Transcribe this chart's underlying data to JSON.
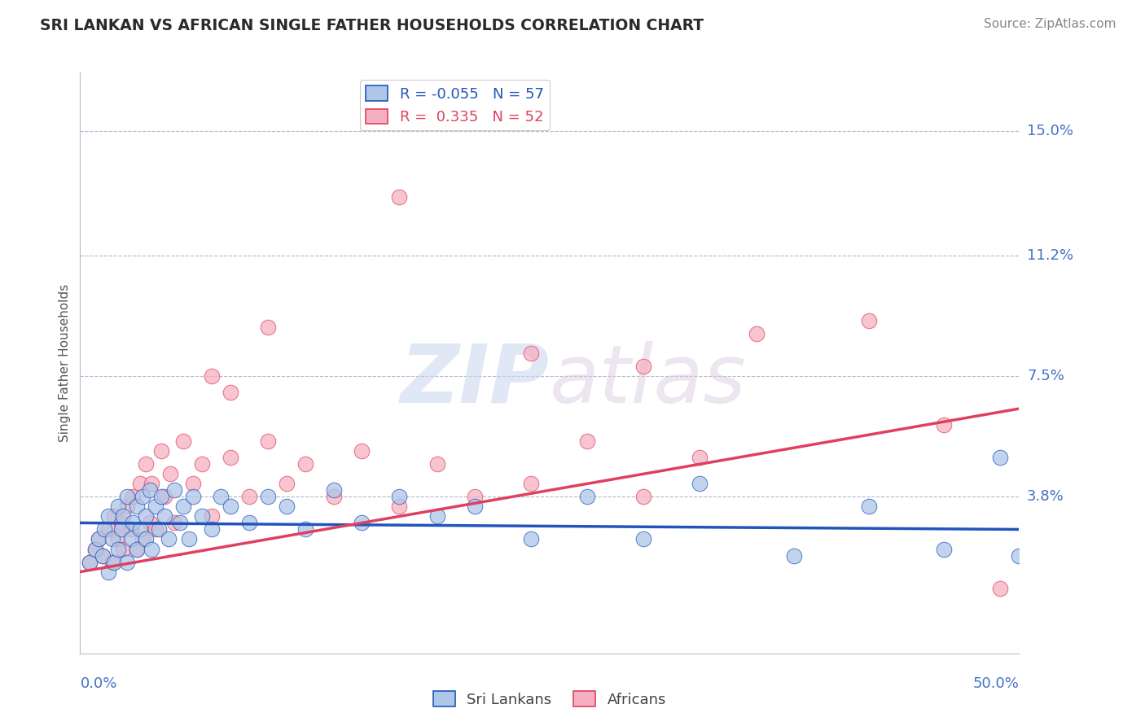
{
  "title": "SRI LANKAN VS AFRICAN SINGLE FATHER HOUSEHOLDS CORRELATION CHART",
  "source": "Source: ZipAtlas.com",
  "ylabel": "Single Father Households",
  "ytick_labels": [
    "15.0%",
    "11.2%",
    "7.5%",
    "3.8%"
  ],
  "ytick_values": [
    0.15,
    0.112,
    0.075,
    0.038
  ],
  "xmin": 0.0,
  "xmax": 0.5,
  "ymin": -0.01,
  "ymax": 0.168,
  "legend_sri_r": "-0.055",
  "legend_sri_n": "57",
  "legend_afr_r": "0.335",
  "legend_afr_n": "52",
  "sri_color": "#aec6e8",
  "afr_color": "#f5b0c0",
  "sri_line_color": "#2255bb",
  "afr_line_color": "#e04060",
  "watermark_zip": "ZIP",
  "watermark_atlas": "atlas",
  "title_color": "#2a2a2a",
  "axis_label_color": "#4472c4",
  "sri_lankans_x": [
    0.005,
    0.008,
    0.01,
    0.012,
    0.013,
    0.015,
    0.015,
    0.017,
    0.018,
    0.02,
    0.02,
    0.022,
    0.023,
    0.025,
    0.025,
    0.027,
    0.028,
    0.03,
    0.03,
    0.032,
    0.033,
    0.035,
    0.035,
    0.037,
    0.038,
    0.04,
    0.042,
    0.043,
    0.045,
    0.047,
    0.05,
    0.053,
    0.055,
    0.058,
    0.06,
    0.065,
    0.07,
    0.075,
    0.08,
    0.09,
    0.1,
    0.11,
    0.12,
    0.135,
    0.15,
    0.17,
    0.19,
    0.21,
    0.24,
    0.27,
    0.3,
    0.33,
    0.38,
    0.42,
    0.46,
    0.49,
    0.5
  ],
  "sri_lankans_y": [
    0.018,
    0.022,
    0.025,
    0.02,
    0.028,
    0.015,
    0.032,
    0.025,
    0.018,
    0.035,
    0.022,
    0.028,
    0.032,
    0.018,
    0.038,
    0.025,
    0.03,
    0.022,
    0.035,
    0.028,
    0.038,
    0.025,
    0.032,
    0.04,
    0.022,
    0.035,
    0.028,
    0.038,
    0.032,
    0.025,
    0.04,
    0.03,
    0.035,
    0.025,
    0.038,
    0.032,
    0.028,
    0.038,
    0.035,
    0.03,
    0.038,
    0.035,
    0.028,
    0.04,
    0.03,
    0.038,
    0.032,
    0.035,
    0.025,
    0.038,
    0.025,
    0.042,
    0.02,
    0.035,
    0.022,
    0.05,
    0.02
  ],
  "africans_x": [
    0.005,
    0.008,
    0.01,
    0.012,
    0.015,
    0.017,
    0.018,
    0.02,
    0.022,
    0.023,
    0.025,
    0.027,
    0.028,
    0.03,
    0.032,
    0.033,
    0.035,
    0.037,
    0.038,
    0.04,
    0.043,
    0.045,
    0.048,
    0.05,
    0.055,
    0.06,
    0.065,
    0.07,
    0.08,
    0.09,
    0.1,
    0.11,
    0.12,
    0.135,
    0.15,
    0.17,
    0.19,
    0.21,
    0.24,
    0.27,
    0.3,
    0.33,
    0.07,
    0.08,
    0.1,
    0.17,
    0.24,
    0.3,
    0.36,
    0.42,
    0.46,
    0.49
  ],
  "africans_y": [
    0.018,
    0.022,
    0.025,
    0.02,
    0.028,
    0.018,
    0.032,
    0.025,
    0.03,
    0.022,
    0.035,
    0.028,
    0.038,
    0.022,
    0.042,
    0.025,
    0.048,
    0.03,
    0.042,
    0.028,
    0.052,
    0.038,
    0.045,
    0.03,
    0.055,
    0.042,
    0.048,
    0.032,
    0.05,
    0.038,
    0.055,
    0.042,
    0.048,
    0.038,
    0.052,
    0.035,
    0.048,
    0.038,
    0.042,
    0.055,
    0.038,
    0.05,
    0.075,
    0.07,
    0.09,
    0.13,
    0.082,
    0.078,
    0.088,
    0.092,
    0.06,
    0.01
  ],
  "afr_line_x0": 0.0,
  "afr_line_y0": 0.015,
  "afr_line_x1": 0.5,
  "afr_line_y1": 0.065,
  "sri_line_x0": 0.0,
  "sri_line_y0": 0.03,
  "sri_line_x1": 0.5,
  "sri_line_y1": 0.028
}
